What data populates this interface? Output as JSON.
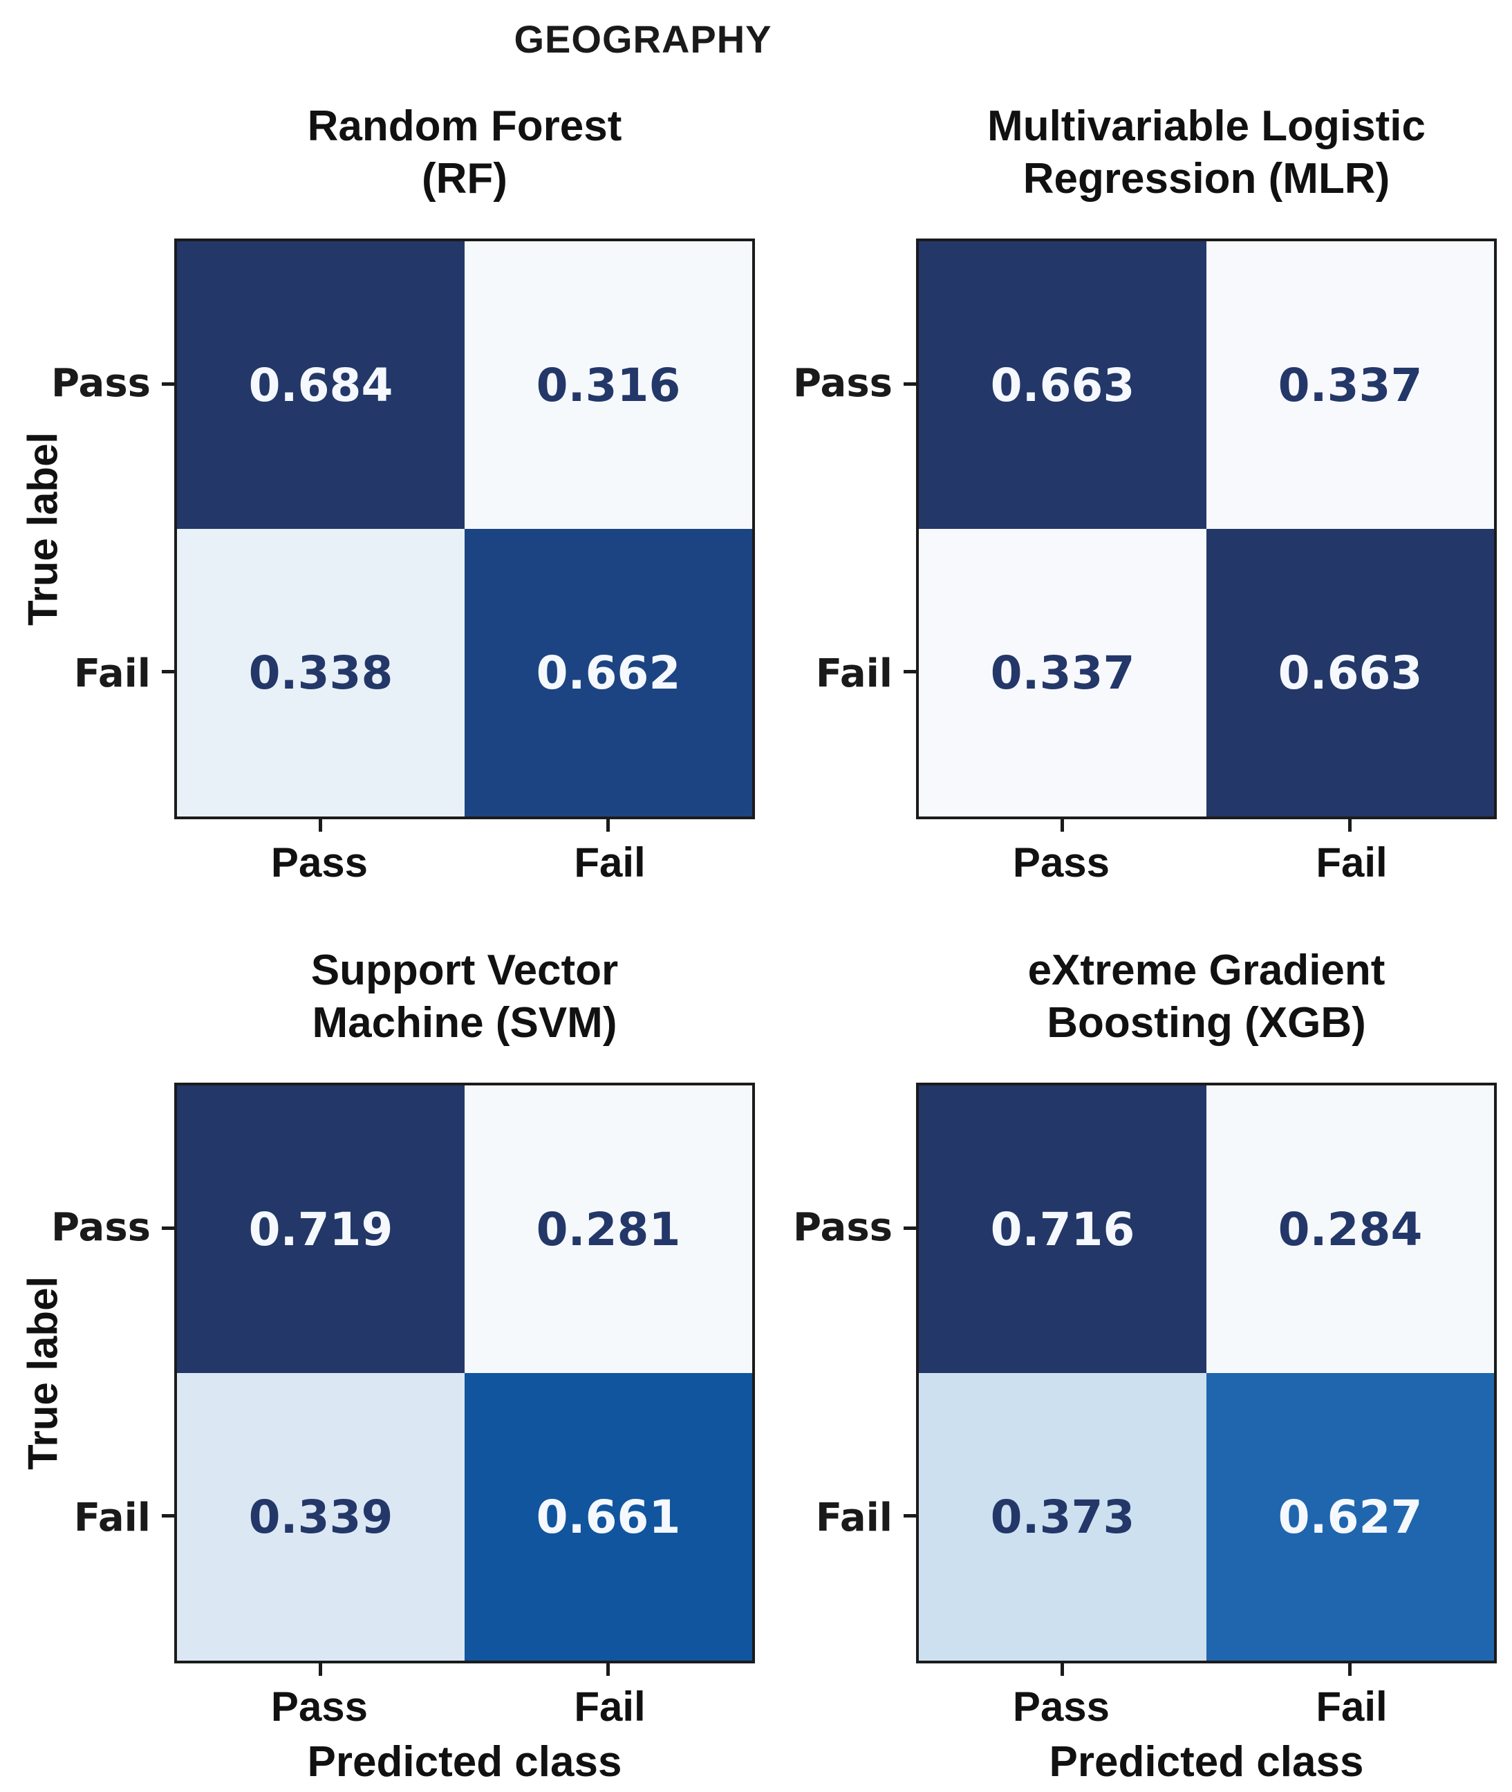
{
  "figure": {
    "title": "GEOGRAPHY",
    "xlabel": "Predicted class",
    "ylabel": "True label",
    "colormap": "Blues"
  },
  "axis": {
    "x_ticks": [
      "Pass",
      "Fail"
    ],
    "y_ticks": [
      "Pass",
      "Fail"
    ]
  },
  "panels": [
    {
      "title": "Random Forest\n(RF)",
      "cells": [
        {
          "value": "0.684",
          "bg": "#233768",
          "fg": "#f5f8fc"
        },
        {
          "value": "0.316",
          "bg": "#f6f9fc",
          "fg": "#243769"
        },
        {
          "value": "0.338",
          "bg": "#e9f1f8",
          "fg": "#243769"
        },
        {
          "value": "0.662",
          "bg": "#1c4482",
          "fg": "#f5f8fc"
        }
      ]
    },
    {
      "title": "Multivariable Logistic\nRegression (MLR)",
      "cells": [
        {
          "value": "0.663",
          "bg": "#233768",
          "fg": "#f5f8fc"
        },
        {
          "value": "0.337",
          "bg": "#f7f9fc",
          "fg": "#243769"
        },
        {
          "value": "0.337",
          "bg": "#f7f9fc",
          "fg": "#243769"
        },
        {
          "value": "0.663",
          "bg": "#233768",
          "fg": "#f5f8fc"
        }
      ]
    },
    {
      "title": "Support Vector\nMachine (SVM)",
      "cells": [
        {
          "value": "0.719",
          "bg": "#233768",
          "fg": "#f5f8fc"
        },
        {
          "value": "0.281",
          "bg": "#f6f9fc",
          "fg": "#243769"
        },
        {
          "value": "0.339",
          "bg": "#dbe8f4",
          "fg": "#243769"
        },
        {
          "value": "0.661",
          "bg": "#10559e",
          "fg": "#f5f8fc"
        }
      ]
    },
    {
      "title": "eXtreme Gradient\nBoosting (XGB)",
      "cells": [
        {
          "value": "0.716",
          "bg": "#233768",
          "fg": "#f5f8fc"
        },
        {
          "value": "0.284",
          "bg": "#f6f9fc",
          "fg": "#243769"
        },
        {
          "value": "0.373",
          "bg": "#cde0f0",
          "fg": "#243769"
        },
        {
          "value": "0.627",
          "bg": "#2066ae",
          "fg": "#f5f8fc"
        }
      ]
    }
  ],
  "chart_data": [
    {
      "type": "heatmap",
      "title": "Random Forest (RF)",
      "suptitle": "GEOGRAPHY",
      "x_categories": [
        "Pass",
        "Fail"
      ],
      "y_categories": [
        "Pass",
        "Fail"
      ],
      "xlabel": "Predicted class",
      "ylabel": "True label",
      "values": [
        [
          0.684,
          0.316
        ],
        [
          0.338,
          0.662
        ]
      ],
      "colormap": "Blues",
      "value_range": [
        0,
        1
      ]
    },
    {
      "type": "heatmap",
      "title": "Multivariable Logistic Regression (MLR)",
      "x_categories": [
        "Pass",
        "Fail"
      ],
      "y_categories": [
        "Pass",
        "Fail"
      ],
      "xlabel": "Predicted class",
      "ylabel": "True label",
      "values": [
        [
          0.663,
          0.337
        ],
        [
          0.337,
          0.663
        ]
      ],
      "colormap": "Blues",
      "value_range": [
        0,
        1
      ]
    },
    {
      "type": "heatmap",
      "title": "Support Vector Machine (SVM)",
      "x_categories": [
        "Pass",
        "Fail"
      ],
      "y_categories": [
        "Pass",
        "Fail"
      ],
      "xlabel": "Predicted class",
      "ylabel": "True label",
      "values": [
        [
          0.719,
          0.281
        ],
        [
          0.339,
          0.661
        ]
      ],
      "colormap": "Blues",
      "value_range": [
        0,
        1
      ]
    },
    {
      "type": "heatmap",
      "title": "eXtreme Gradient Boosting (XGB)",
      "x_categories": [
        "Pass",
        "Fail"
      ],
      "y_categories": [
        "Pass",
        "Fail"
      ],
      "xlabel": "Predicted class",
      "ylabel": "True label",
      "values": [
        [
          0.716,
          0.284
        ],
        [
          0.373,
          0.627
        ]
      ],
      "colormap": "Blues",
      "value_range": [
        0,
        1
      ]
    }
  ]
}
